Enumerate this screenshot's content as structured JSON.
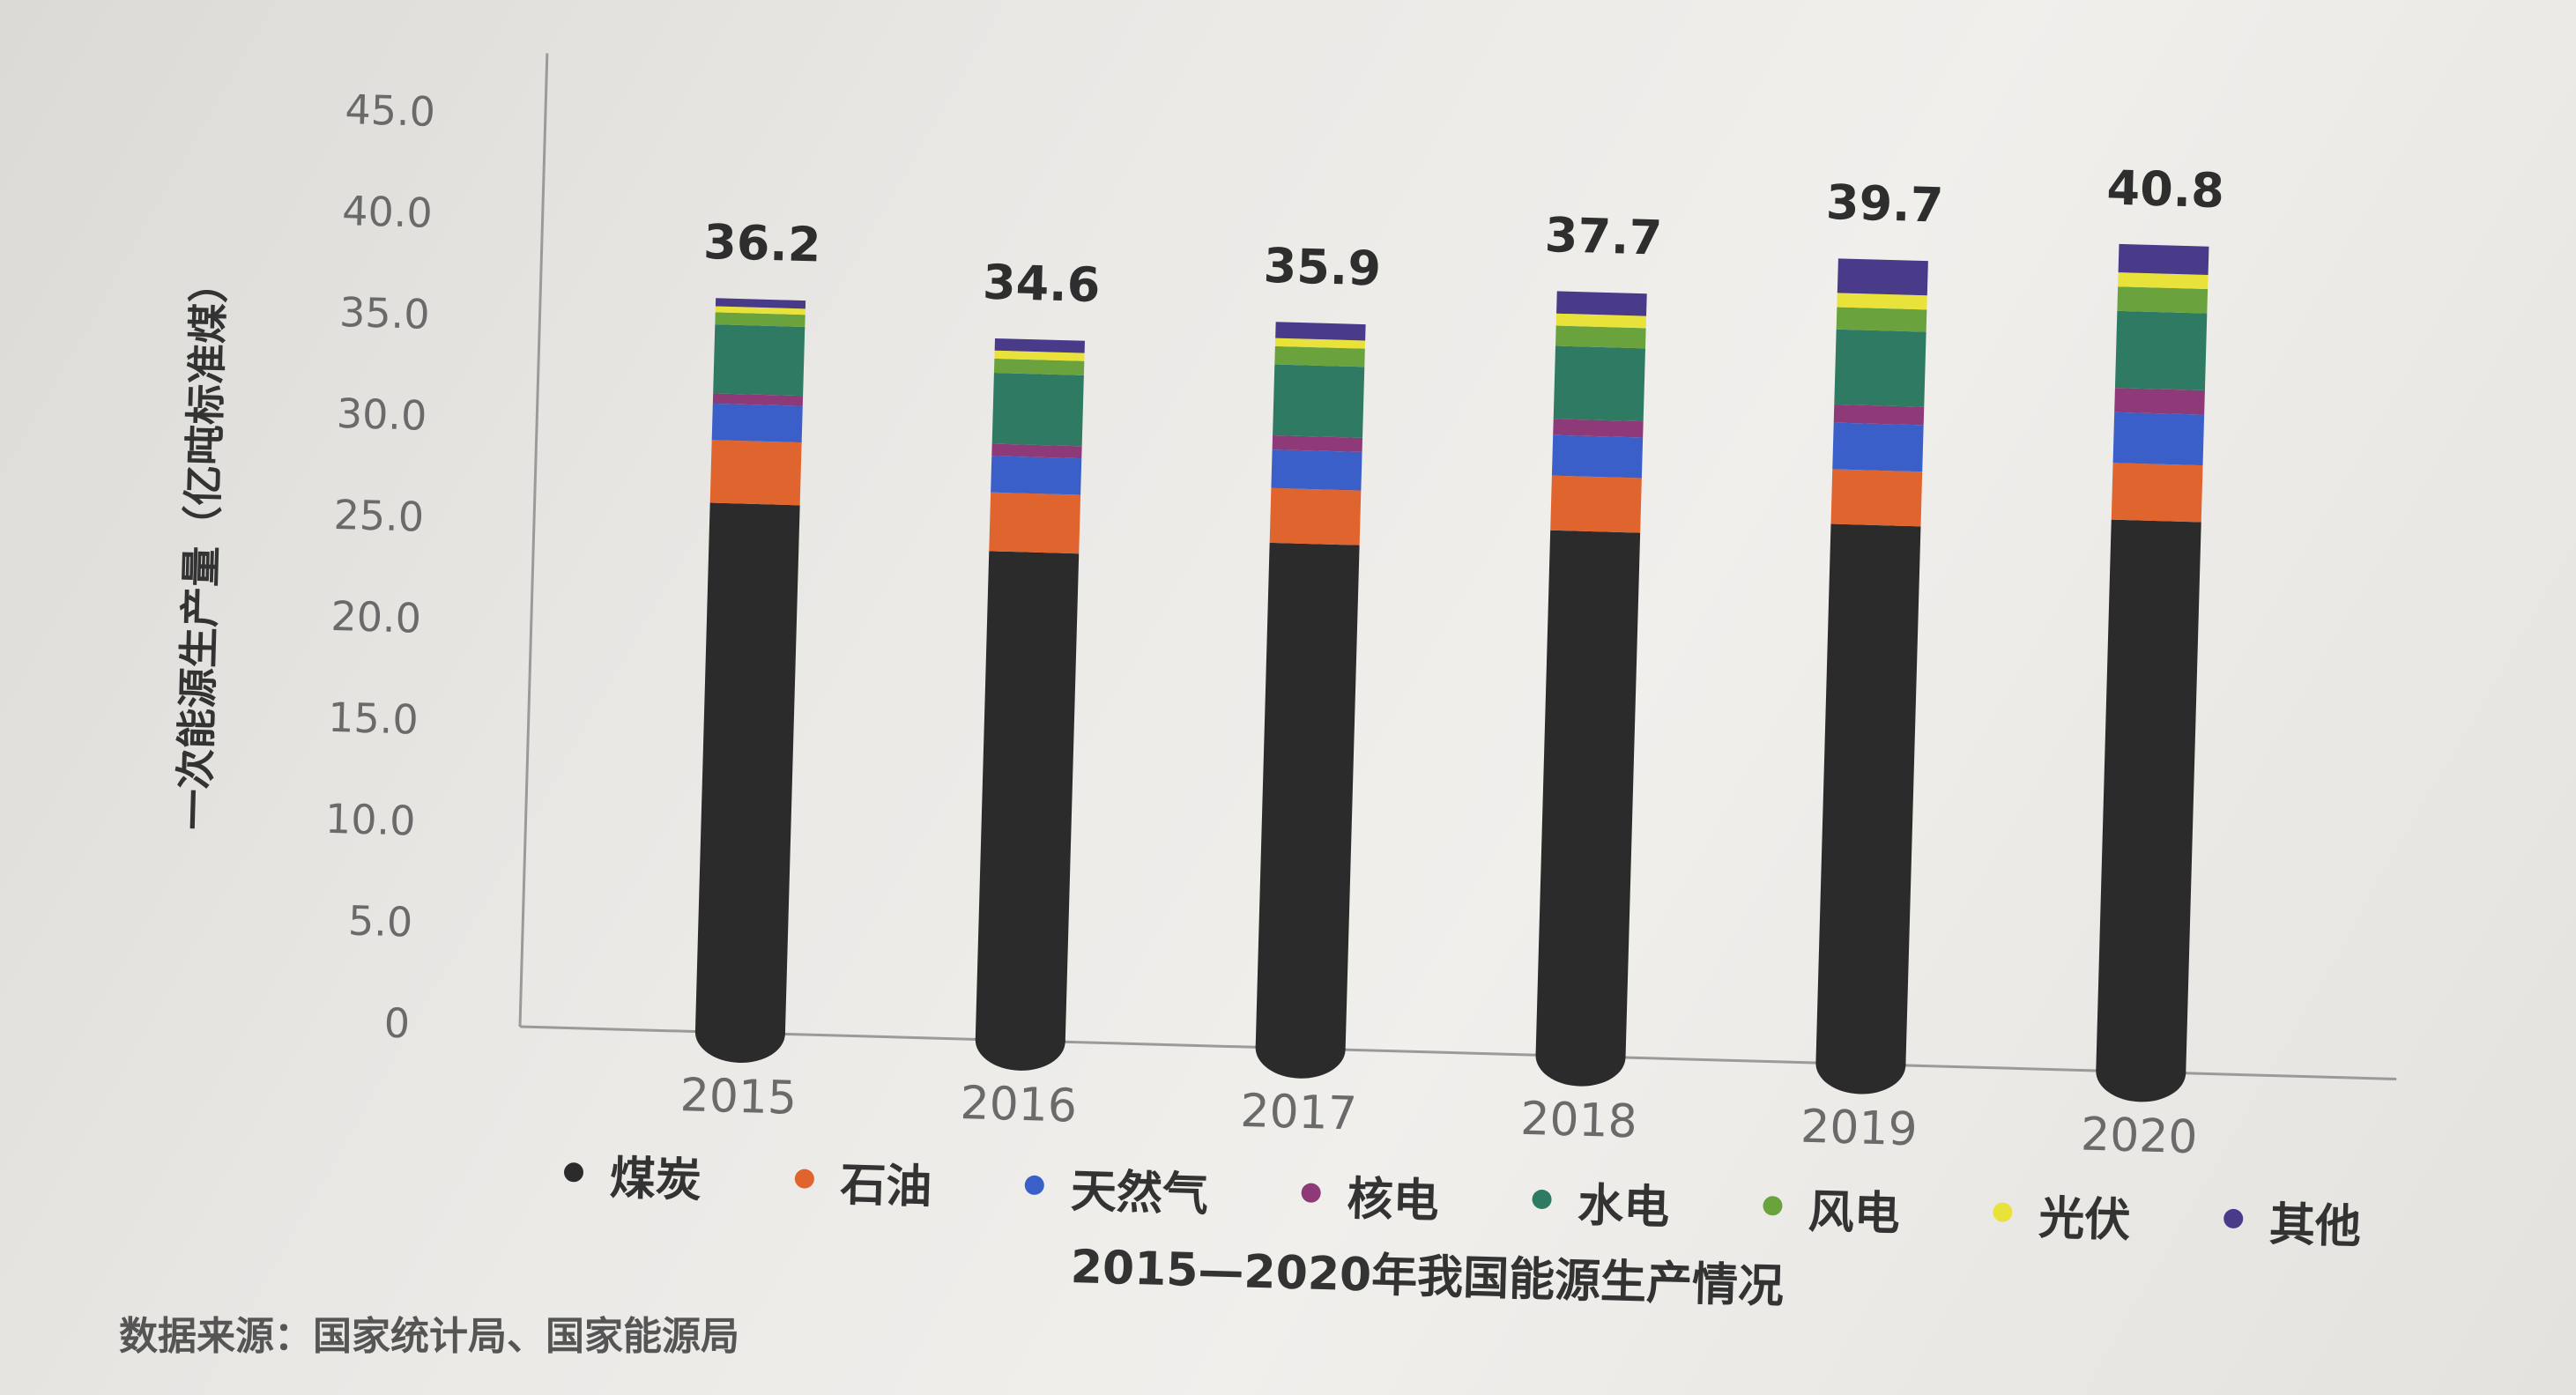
{
  "chart_data": {
    "type": "bar",
    "stacked": true,
    "title": "2015—2020年我国能源生产情况",
    "ylabel": "一次能源生产量（亿吨标准煤）",
    "xlabel": "",
    "ylim": [
      0,
      45
    ],
    "yticks": [
      "0",
      "5.0",
      "10.0",
      "15.0",
      "20.0",
      "25.0",
      "30.0",
      "35.0",
      "40.0",
      "45.0"
    ],
    "categories": [
      "2015",
      "2016",
      "2017",
      "2018",
      "2019",
      "2020"
    ],
    "totals": [
      "36.2",
      "34.6",
      "35.9",
      "37.7",
      "39.7",
      "40.8"
    ],
    "grid": false,
    "legend_position": "bottom",
    "series": [
      {
        "name": "煤炭",
        "color": "#2b2b2b",
        "values": [
          26.1,
          24.1,
          24.9,
          25.9,
          26.6,
          27.2
        ]
      },
      {
        "name": "石油",
        "color": "#e0642e",
        "values": [
          3.1,
          2.9,
          2.7,
          2.7,
          2.7,
          2.8
        ]
      },
      {
        "name": "天然气",
        "color": "#3a5fc8",
        "values": [
          1.8,
          1.8,
          1.9,
          2.0,
          2.3,
          2.5
        ]
      },
      {
        "name": "核电",
        "color": "#8e3a78",
        "values": [
          0.5,
          0.6,
          0.7,
          0.8,
          0.9,
          1.2
        ]
      },
      {
        "name": "水电",
        "color": "#2f7a62",
        "values": [
          3.4,
          3.5,
          3.5,
          3.6,
          3.7,
          3.8
        ]
      },
      {
        "name": "风电",
        "color": "#6aa33e",
        "values": [
          0.6,
          0.7,
          0.9,
          1.0,
          1.1,
          1.2
        ]
      },
      {
        "name": "光伏",
        "color": "#e9e23a",
        "values": [
          0.3,
          0.4,
          0.4,
          0.6,
          0.7,
          0.7
        ]
      },
      {
        "name": "其他",
        "color": "#4a3a8a",
        "values": [
          0.4,
          0.6,
          0.8,
          1.1,
          1.7,
          1.4
        ]
      }
    ]
  },
  "source_note": "数据来源：国家统计局、国家能源局"
}
